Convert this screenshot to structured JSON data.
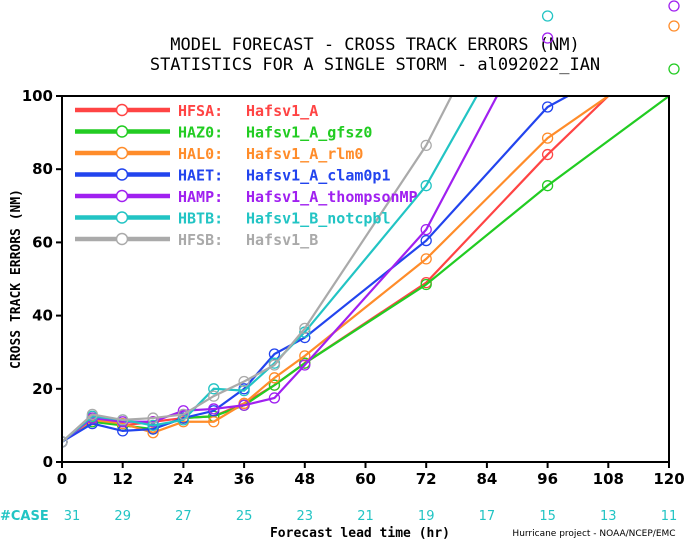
{
  "chart_data": {
    "type": "line",
    "title": "MODEL FORECAST - CROSS TRACK ERRORS (NM)",
    "subtitle": "STATISTICS FOR A SINGLE STORM - al092022_IAN",
    "xlabel": "Forecast lead time (hr)",
    "ylabel": "CROSS TRACK ERRORS (NM)",
    "xlim": [
      0,
      120
    ],
    "ylim": [
      0,
      100
    ],
    "x_ticks": [
      "0",
      "12",
      "24",
      "36",
      "48",
      "60",
      "72",
      "84",
      "96",
      "108",
      "120"
    ],
    "y_ticks": [
      "0",
      "20",
      "40",
      "60",
      "80",
      "100"
    ],
    "case_label": "#CASE",
    "case_counts": [
      "31",
      "29",
      "27",
      "25",
      "23",
      "21",
      "19",
      "17",
      "15",
      "13",
      "11"
    ],
    "credit": "Hurricane project - NOAA/NCEP/EMC",
    "offchart_markers": [
      {
        "color": "#22c4c4",
        "x": 96
      },
      {
        "color": "#a020f0",
        "x": 120
      },
      {
        "color": "#ff8c2a",
        "x": 120
      },
      {
        "color": "#a020f0",
        "x": 96
      },
      {
        "color": "#22cc22",
        "x": 120
      }
    ],
    "series": [
      {
        "code": "HFSA:",
        "name": "Hafsv1_A",
        "color": "#ff4444",
        "x": [
          0,
          6,
          12,
          18,
          24,
          30,
          36,
          42,
          48,
          72,
          96,
          108
        ],
        "y": [
          5.5,
          12,
          10,
          11,
          12,
          12.5,
          16,
          21,
          27,
          49,
          84,
          100
        ]
      },
      {
        "code": "HAZ0:",
        "name": "Hafsv1_A_gfsz0",
        "color": "#22cc22",
        "x": [
          0,
          6,
          12,
          18,
          24,
          30,
          36,
          42,
          48,
          72,
          96,
          120
        ],
        "y": [
          5.5,
          11,
          10,
          9,
          12,
          12.5,
          15.5,
          21,
          27,
          48.5,
          75.5,
          100
        ]
      },
      {
        "code": "HAL0:",
        "name": "Hafsv1_A_rlm0",
        "color": "#ff8c2a",
        "x": [
          0,
          6,
          12,
          18,
          24,
          30,
          36,
          42,
          48,
          72,
          96,
          108
        ],
        "y": [
          5.5,
          11.5,
          10.5,
          8,
          11,
          11,
          16,
          23,
          29,
          55.5,
          88.5,
          100
        ]
      },
      {
        "code": "HAET:",
        "name": "Hafsv1_A_clam0p1",
        "color": "#2244ee",
        "x": [
          0,
          6,
          12,
          18,
          24,
          30,
          36,
          42,
          48,
          72,
          96,
          100
        ],
        "y": [
          5.5,
          10.5,
          8.5,
          9,
          12,
          14,
          20,
          29.5,
          34,
          60.5,
          97,
          100
        ]
      },
      {
        "code": "HAMP:",
        "name": "Hafsv1_A_thompsonMP",
        "color": "#a020f0",
        "x": [
          0,
          6,
          12,
          18,
          24,
          30,
          36,
          42,
          48,
          72,
          86
        ],
        "y": [
          5.5,
          12,
          11,
          11,
          14,
          14.5,
          15.5,
          17.5,
          26.5,
          63.5,
          100
        ]
      },
      {
        "code": "HBTB:",
        "name": "Hafsv1_B_notcpbl",
        "color": "#22c4c4",
        "x": [
          0,
          6,
          12,
          18,
          24,
          30,
          36,
          42,
          48,
          72,
          82
        ],
        "y": [
          5.5,
          12.5,
          11.5,
          10,
          11.5,
          20,
          19.5,
          27,
          35.5,
          75.5,
          100
        ]
      },
      {
        "code": "HFSB:",
        "name": "Hafsv1_B",
        "color": "#aaaaaa",
        "x": [
          0,
          6,
          12,
          18,
          24,
          30,
          36,
          42,
          48,
          72,
          77
        ],
        "y": [
          5.5,
          13,
          11.5,
          12,
          13,
          18,
          22,
          26.5,
          36.5,
          86.5,
          100
        ]
      }
    ]
  }
}
